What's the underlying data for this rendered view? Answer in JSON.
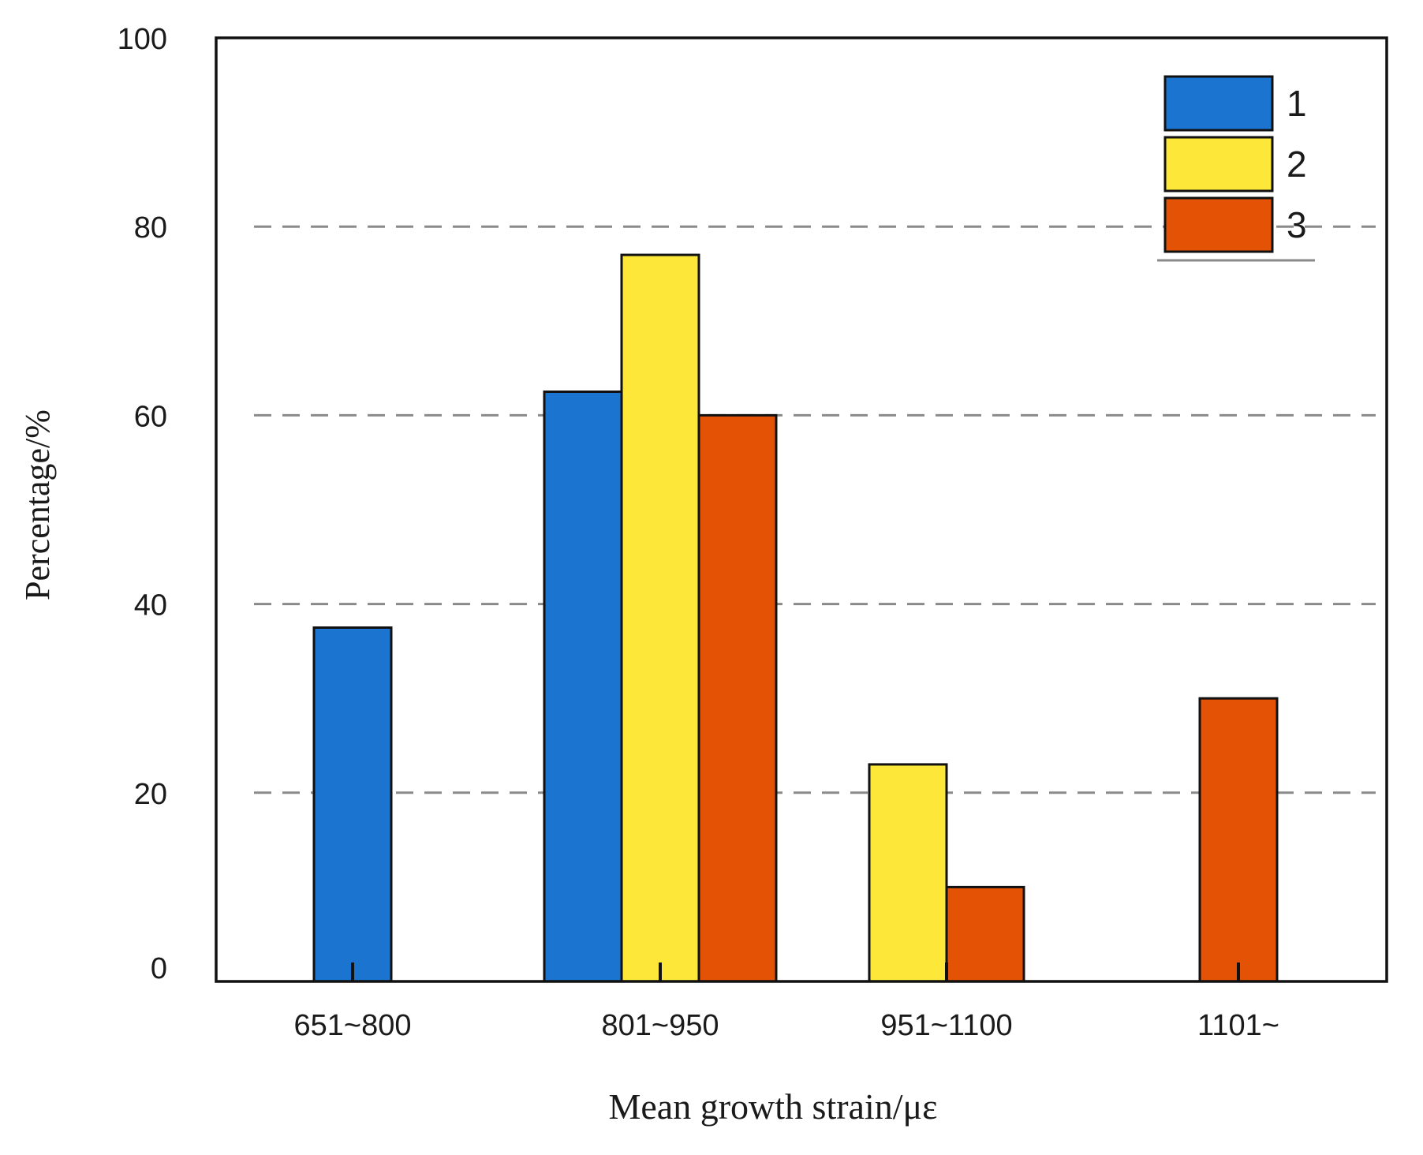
{
  "chart_data": {
    "type": "bar",
    "title": "",
    "xlabel": "Mean growth strain/με",
    "ylabel": "Percentage/%",
    "ylim": [
      0,
      100
    ],
    "yticks": [
      "0",
      "20",
      "40",
      "60",
      "80",
      "100"
    ],
    "grid": true,
    "legend_position": "top-right",
    "categories": [
      "651~800",
      "801~950",
      "951~1100",
      "1101~"
    ],
    "series": [
      {
        "name": "1",
        "color": "#1b75d0",
        "values": [
          37.5,
          62.5,
          null,
          null
        ]
      },
      {
        "name": "2",
        "color": "#fde83a",
        "values": [
          null,
          77.0,
          23.0,
          null
        ]
      },
      {
        "name": "3",
        "color": "#e35205",
        "values": [
          null,
          60.0,
          10.0,
          30.0
        ]
      }
    ]
  }
}
